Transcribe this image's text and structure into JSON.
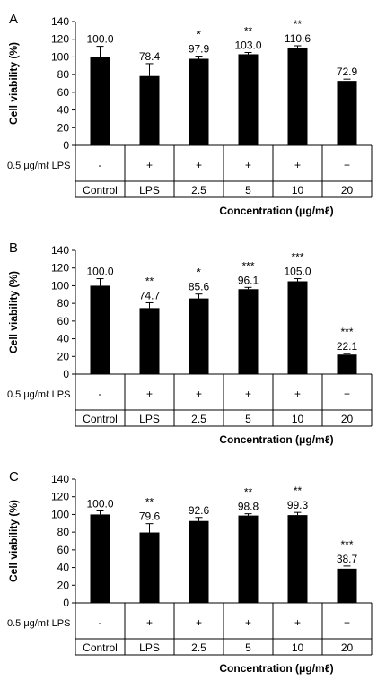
{
  "chart_data": [
    {
      "type": "bar",
      "panel_label": "A",
      "ylabel": "Cell viability (%)",
      "xlabel": "Concentration (μg/mℓ)",
      "ylim": [
        0,
        140
      ],
      "yticks": [
        0,
        20,
        40,
        60,
        80,
        100,
        120,
        140
      ],
      "lps_row_label": "0.5 μg/mℓ LPS",
      "lps_row": [
        "-",
        "+",
        "+",
        "+",
        "+",
        "+"
      ],
      "categories": [
        "Control",
        "LPS",
        "2.5",
        "5",
        "10",
        "20"
      ],
      "values": [
        100.0,
        78.4,
        97.9,
        103.0,
        110.6,
        72.9
      ],
      "value_labels": [
        "100.0",
        "78.4",
        "97.9",
        "103.0",
        "110.6",
        "72.9"
      ],
      "errors": [
        12,
        14,
        3,
        2,
        2,
        2
      ],
      "significance": [
        "",
        "",
        "*",
        "**",
        "**",
        ""
      ],
      "bar_color": "#000000"
    },
    {
      "type": "bar",
      "panel_label": "B",
      "ylabel": "Cell viability (%)",
      "xlabel": "Concentration (μg/mℓ)",
      "ylim": [
        0,
        140
      ],
      "yticks": [
        0,
        20,
        40,
        60,
        80,
        100,
        120,
        140
      ],
      "lps_row_label": "0.5 μg/mℓ LPS",
      "lps_row": [
        "-",
        "+",
        "+",
        "+",
        "+",
        "+"
      ],
      "categories": [
        "Control",
        "LPS",
        "2.5",
        "5",
        "10",
        "20"
      ],
      "values": [
        100.0,
        74.7,
        85.6,
        96.1,
        105.0,
        22.1
      ],
      "value_labels": [
        "100.0",
        "74.7",
        "85.6",
        "96.1",
        "105.0",
        "22.1"
      ],
      "errors": [
        8,
        6,
        5,
        2,
        3,
        1
      ],
      "significance": [
        "",
        "**",
        "*",
        "***",
        "***",
        "***"
      ],
      "bar_color": "#000000"
    },
    {
      "type": "bar",
      "panel_label": "C",
      "ylabel": "Cell viability (%)",
      "xlabel": "Concentration (μg/mℓ)",
      "ylim": [
        0,
        140
      ],
      "yticks": [
        0,
        20,
        40,
        60,
        80,
        100,
        120,
        140
      ],
      "lps_row_label": "0.5 μg/mℓ LPS",
      "lps_row": [
        "-",
        "+",
        "+",
        "+",
        "+",
        "+"
      ],
      "categories": [
        "Control",
        "LPS",
        "2.5",
        "5",
        "10",
        "20"
      ],
      "values": [
        100.0,
        79.6,
        92.6,
        98.8,
        99.3,
        38.7
      ],
      "value_labels": [
        "100.0",
        "79.6",
        "92.6",
        "98.8",
        "99.3",
        "38.7"
      ],
      "errors": [
        4,
        10,
        4,
        2,
        3,
        3
      ],
      "significance": [
        "",
        "**",
        "",
        "**",
        "**",
        "***"
      ],
      "bar_color": "#000000"
    }
  ]
}
